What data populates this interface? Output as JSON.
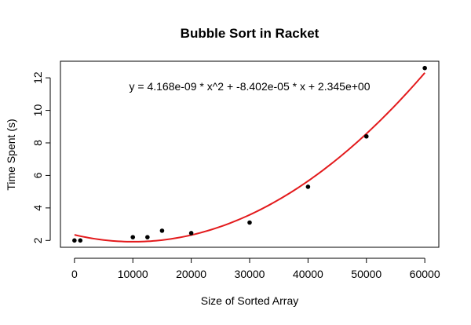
{
  "chart_data": {
    "type": "scatter",
    "title": "Bubble Sort in  Racket",
    "xlabel": "Size of Sorted Array",
    "ylabel": "Time Spent (s)",
    "xlim": [
      -2400,
      62400
    ],
    "ylim": [
      1.58,
      13.02
    ],
    "xticks": [
      0,
      10000,
      20000,
      30000,
      40000,
      50000,
      60000
    ],
    "yticks": [
      2,
      4,
      6,
      8,
      10,
      12
    ],
    "grid": false,
    "legend": "none",
    "points": {
      "x": [
        0,
        1000,
        10000,
        12500,
        15000,
        20000,
        30000,
        40000,
        50000,
        60000
      ],
      "y": [
        2.0,
        2.0,
        2.2,
        2.2,
        2.6,
        2.45,
        3.1,
        5.3,
        8.4,
        12.6
      ],
      "color": "#000000"
    },
    "fit": {
      "equation_label": "y = 4.168e-09 * x^2 + -8.402e-05 * x + 2.345e+00",
      "a": 4.168e-09,
      "b": -8.402e-05,
      "c": 2.345,
      "x_range": [
        0,
        60000
      ],
      "color": "#e31a1c"
    }
  }
}
